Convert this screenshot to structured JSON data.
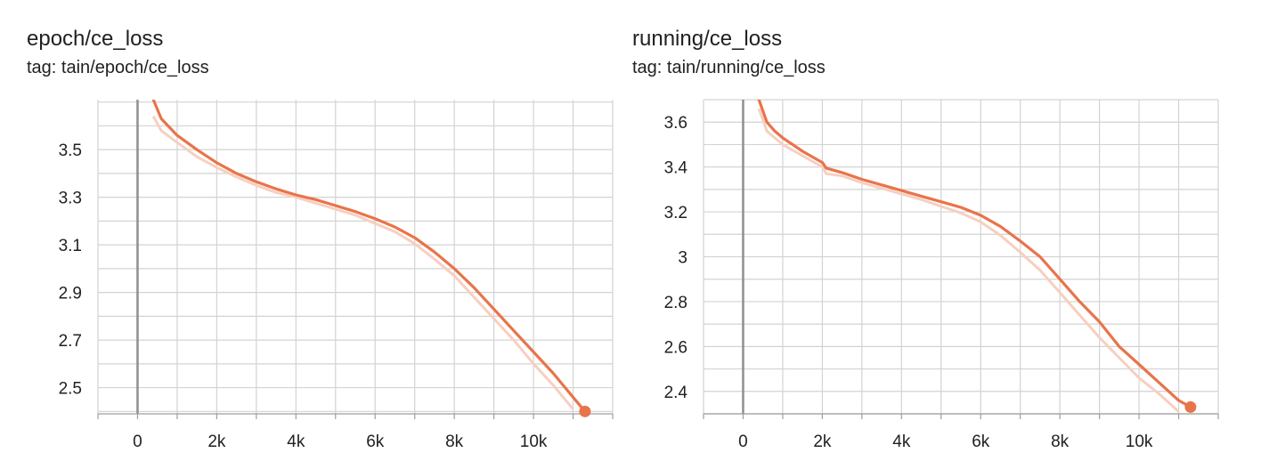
{
  "colors": {
    "line": "#e8744a",
    "raw_line": "#f7cfc0",
    "grid": "#d3d3d3",
    "axis": "#9e9e9e",
    "zero_line": "#8f8f8f"
  },
  "chart_data": [
    {
      "type": "line",
      "title": "epoch/ce_loss",
      "tag": "tag: tain/epoch/ce_loss",
      "xlim": [
        -1000,
        12000
      ],
      "ylim": [
        2.39,
        3.71
      ],
      "xticks": [
        0,
        2000,
        4000,
        6000,
        8000,
        10000
      ],
      "xtick_labels": [
        "0",
        "2k",
        "4k",
        "6k",
        "8k",
        "10k"
      ],
      "yticks": [
        2.5,
        2.7,
        2.9,
        3.1,
        3.3,
        3.5
      ],
      "ytick_labels": [
        "2.5",
        "2.7",
        "2.9",
        "3.1",
        "3.3",
        "3.5"
      ],
      "grid": true,
      "series": [
        {
          "style": "smoothed",
          "x": [
            400,
            600,
            1000,
            1500,
            2000,
            2500,
            3000,
            3500,
            4000,
            4500,
            5000,
            5500,
            6000,
            6500,
            7000,
            7500,
            8000,
            8500,
            9000,
            9500,
            10000,
            10500,
            11000,
            11300
          ],
          "y": [
            3.71,
            3.63,
            3.56,
            3.5,
            3.445,
            3.4,
            3.365,
            3.335,
            3.31,
            3.29,
            3.265,
            3.24,
            3.21,
            3.175,
            3.13,
            3.07,
            3.0,
            2.92,
            2.83,
            2.74,
            2.65,
            2.56,
            2.46,
            2.4
          ]
        },
        {
          "style": "raw",
          "x": [
            400,
            600,
            1000,
            1500,
            2000,
            2500,
            3000,
            3500,
            4000,
            4500,
            5000,
            5500,
            6000,
            6500,
            7000,
            7500,
            8000,
            8500,
            9000,
            9500,
            10000,
            10500,
            11000
          ],
          "y": [
            3.64,
            3.58,
            3.53,
            3.47,
            3.425,
            3.385,
            3.35,
            3.32,
            3.3,
            3.275,
            3.25,
            3.225,
            3.19,
            3.155,
            3.105,
            3.04,
            2.97,
            2.88,
            2.79,
            2.7,
            2.6,
            2.51,
            2.41
          ]
        }
      ]
    },
    {
      "type": "line",
      "title": "running/ce_loss",
      "tag": "tag: tain/running/ce_loss",
      "xlim": [
        -1000,
        12000
      ],
      "ylim": [
        2.3,
        3.7
      ],
      "xticks": [
        0,
        2000,
        4000,
        6000,
        8000,
        10000
      ],
      "xtick_labels": [
        "0",
        "2k",
        "4k",
        "6k",
        "8k",
        "10k"
      ],
      "yticks": [
        2.4,
        2.6,
        2.8,
        3.0,
        3.2,
        3.4,
        3.6
      ],
      "ytick_labels": [
        "2.4",
        "2.6",
        "2.8",
        "3",
        "3.2",
        "3.4",
        "3.6"
      ],
      "grid": true,
      "series": [
        {
          "style": "smoothed",
          "x": [
            400,
            600,
            800,
            1000,
            1500,
            2000,
            2100,
            2500,
            3000,
            3500,
            4000,
            4500,
            5000,
            5500,
            6000,
            6500,
            7000,
            7500,
            8000,
            8500,
            9000,
            9500,
            10000,
            10500,
            11000,
            11300
          ],
          "y": [
            3.7,
            3.6,
            3.56,
            3.53,
            3.47,
            3.42,
            3.395,
            3.375,
            3.345,
            3.32,
            3.295,
            3.27,
            3.245,
            3.22,
            3.185,
            3.135,
            3.07,
            3.0,
            2.9,
            2.8,
            2.71,
            2.6,
            2.52,
            2.44,
            2.36,
            2.33
          ]
        },
        {
          "style": "raw",
          "x": [
            400,
            600,
            800,
            1000,
            1500,
            2000,
            2100,
            2500,
            3000,
            3500,
            4000,
            4500,
            5000,
            5500,
            6000,
            6500,
            7000,
            7500,
            8000,
            8500,
            9000,
            9500,
            10000,
            10500,
            11000
          ],
          "y": [
            3.66,
            3.56,
            3.53,
            3.5,
            3.45,
            3.4,
            3.37,
            3.36,
            3.33,
            3.305,
            3.28,
            3.255,
            3.225,
            3.195,
            3.155,
            3.095,
            3.02,
            2.94,
            2.84,
            2.74,
            2.64,
            2.55,
            2.46,
            2.39,
            2.31
          ]
        }
      ]
    }
  ]
}
